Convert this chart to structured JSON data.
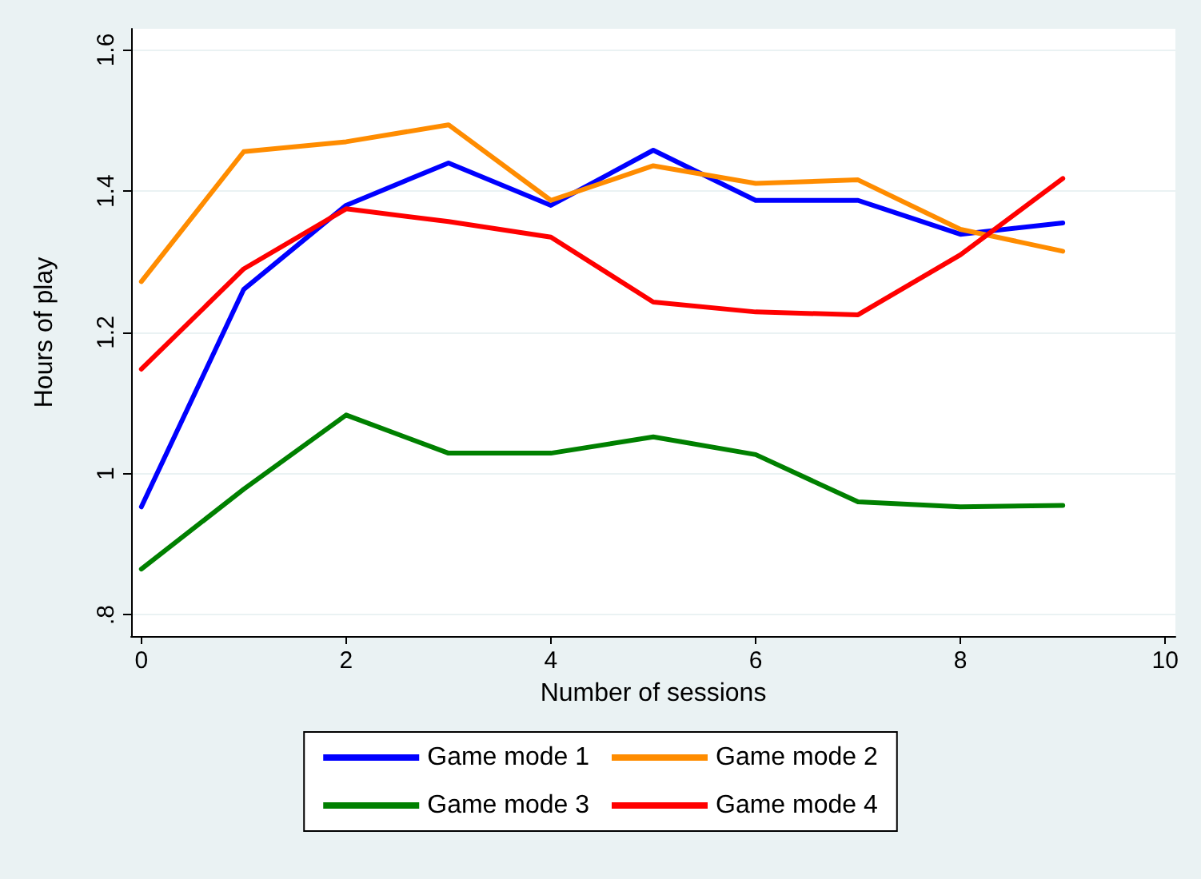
{
  "chart_data": {
    "type": "line",
    "xlabel": "Number of sessions",
    "ylabel": "Hours of play",
    "x": [
      0,
      1,
      2,
      3,
      4,
      5,
      6,
      7,
      8,
      9
    ],
    "series": [
      {
        "name": "Game mode 1",
        "color": "#0000ff",
        "values": [
          0.953,
          1.261,
          1.38,
          1.44,
          1.38,
          1.458,
          1.387,
          1.387,
          1.339,
          1.355
        ]
      },
      {
        "name": "Game mode 2",
        "color": "#ff8c00",
        "values": [
          1.272,
          1.456,
          1.47,
          1.494,
          1.387,
          1.436,
          1.411,
          1.416,
          1.346,
          1.315
        ]
      },
      {
        "name": "Game mode 3",
        "color": "#008000",
        "values": [
          0.865,
          0.978,
          1.083,
          1.029,
          1.029,
          1.052,
          1.027,
          0.96,
          0.953,
          0.955
        ]
      },
      {
        "name": "Game mode 4",
        "color": "#ff0000",
        "values": [
          1.148,
          1.29,
          1.375,
          1.357,
          1.335,
          1.243,
          1.229,
          1.225,
          1.31,
          1.418
        ]
      }
    ],
    "xlim": [
      -0.1,
      10.1
    ],
    "xticks": [
      0,
      2,
      4,
      6,
      8,
      10
    ],
    "ylim": [
      0.77,
      1.63
    ],
    "yticks": [
      {
        "value": 0.8,
        "label": ".8"
      },
      1,
      1.2,
      1.4,
      1.6
    ],
    "grid": "y",
    "legend": "bottom",
    "marker": "none",
    "line_style": "solid"
  }
}
